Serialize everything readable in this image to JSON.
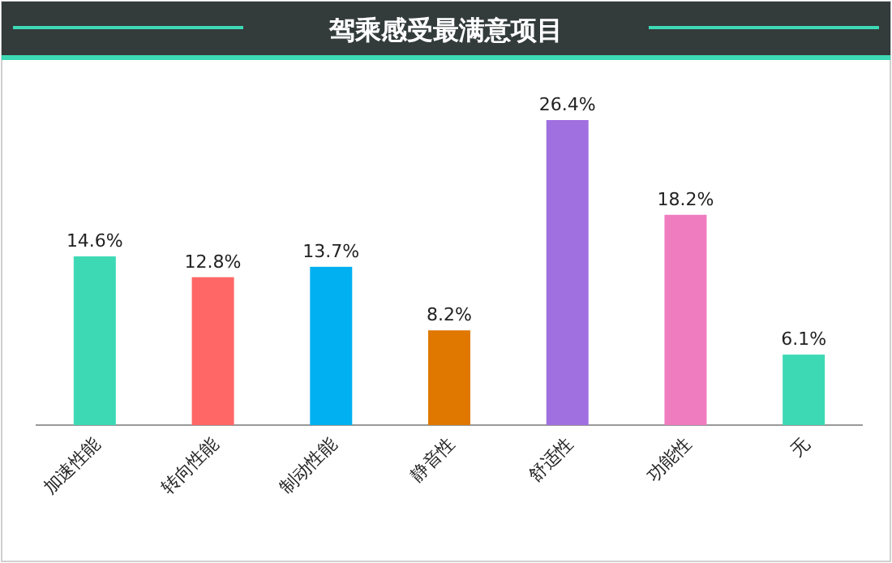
{
  "chart_data": {
    "type": "bar",
    "title": "驾乘感受最满意项目",
    "categories": [
      "加速性能",
      "转向性能",
      "制动性能",
      "静音性",
      "舒适性",
      "功能性",
      "无"
    ],
    "values": [
      14.6,
      12.8,
      13.7,
      8.2,
      26.4,
      18.2,
      6.1
    ],
    "colors": [
      "#3dd9b5",
      "#ff6666",
      "#00b0f0",
      "#e07800",
      "#a070e0",
      "#f07cc0",
      "#3dd9b5"
    ],
    "value_labels": [
      "14.6%",
      "12.8%",
      "13.7%",
      "8.2%",
      "26.4%",
      "18.2%",
      "6.1%"
    ]
  }
}
